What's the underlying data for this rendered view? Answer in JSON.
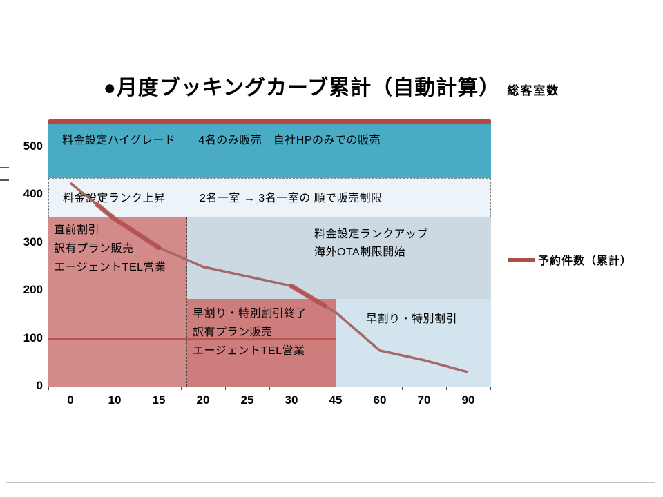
{
  "slide": {
    "title": "●月度ブッキングカーブ累計（自動計算）",
    "title_suffix": "総客室数"
  },
  "legend": {
    "label": "予約件数（累計）",
    "line_color": "#ab4f4b"
  },
  "chart_data": {
    "type": "line",
    "title": "月度ブッキングカーブ累計（自動計算）",
    "xlabel": "",
    "ylabel": "",
    "categories": [
      "0",
      "10",
      "15",
      "20",
      "25",
      "30",
      "45",
      "60",
      "70",
      "90"
    ],
    "y_ticks": [
      0,
      100,
      200,
      300,
      400,
      500
    ],
    "ylim": [
      0,
      560
    ],
    "grid": false,
    "legend_position": "right",
    "series": [
      {
        "name": "予約件数（累計）",
        "values": [
          425,
          350,
          290,
          250,
          230,
          210,
          155,
          75,
          55,
          30
        ],
        "color": "#a56767"
      }
    ],
    "capacity_line": {
      "value": 553,
      "color": "#b7483f"
    },
    "reference_line": {
      "value": 100,
      "from_category": "0",
      "to_category": "45",
      "color": "#bb524e"
    },
    "zones": [
      {
        "name": "highgrade-band",
        "color": "#4aabc4",
        "value_range": [
          435,
          547
        ],
        "category_range": [
          "0",
          "90"
        ],
        "lines": [
          "料金設定ハイグレード　　4名のみ販売　自社HPのみでの販売"
        ]
      },
      {
        "name": "rank-up-band",
        "color": "#ecf3f9",
        "value_range": [
          353,
          435
        ],
        "category_range": [
          "0",
          "90"
        ],
        "lines": [
          "料金設定ランク上昇　　　2名一室 → 3名一室の 順で販売制限"
        ]
      },
      {
        "name": "last-minute-discount",
        "color": "#d28b89",
        "value_range": [
          0,
          353
        ],
        "category_range": [
          "0",
          "15"
        ],
        "lines": [
          "直前割引",
          "訳有プラン販売",
          "エージェントTEL営業"
        ]
      },
      {
        "name": "rank-up-ota-limit",
        "color": "#ccd9e3",
        "value_range": [
          180,
          353
        ],
        "category_range": [
          "20",
          "90"
        ],
        "lines": [
          "料金設定ランクアップ",
          "海外OTA制限開始"
        ]
      },
      {
        "name": "early-discount-end",
        "color": "#cd7d7c",
        "value_range": [
          0,
          180
        ],
        "category_range": [
          "20",
          "45"
        ],
        "lines": [
          "早割り・特別割引終了",
          "訳有プラン販売",
          "エージェントTEL営業"
        ]
      },
      {
        "name": "early-discount",
        "color": "#d3e4ef",
        "value_range": [
          0,
          180
        ],
        "category_range": [
          "45",
          "90"
        ],
        "lines": [
          "早割り・特別割引"
        ]
      }
    ]
  }
}
